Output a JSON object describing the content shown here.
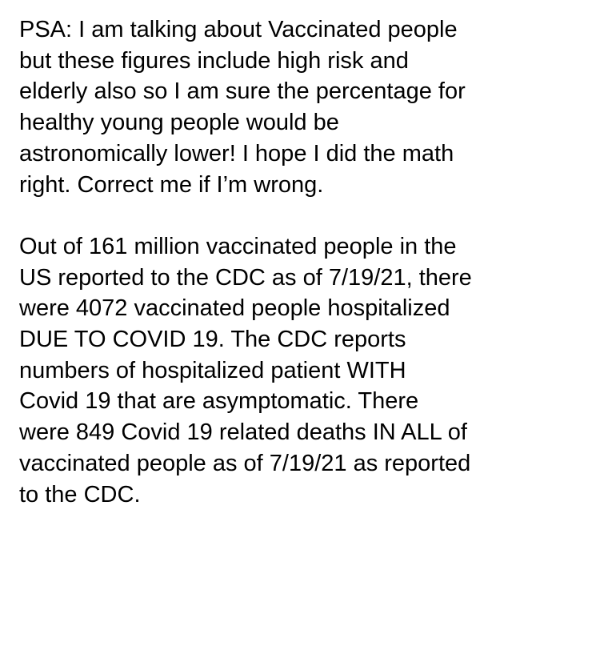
{
  "note": {
    "paragraph1": [
      "PSA: I am talking about Vaccinated people",
      "but these figures include high risk and",
      "elderly also so I am sure the percentage for",
      "healthy young people would be",
      "astronomically lower! I hope I did the math",
      "right. Correct me if I’m wrong."
    ],
    "paragraph2": [
      "Out of 161 million vaccinated people in the",
      "US reported to the CDC as of 7/19/21, there",
      "were 4072  vaccinated people hospitalized",
      "DUE TO COVID 19. The CDC reports",
      "numbers of hospitalized patient WITH",
      "Covid 19 that are asymptomatic. There",
      "were 849 Covid 19 related deaths IN ALL of",
      "vaccinated people as of 7/19/21 as reported",
      "to the CDC."
    ]
  }
}
